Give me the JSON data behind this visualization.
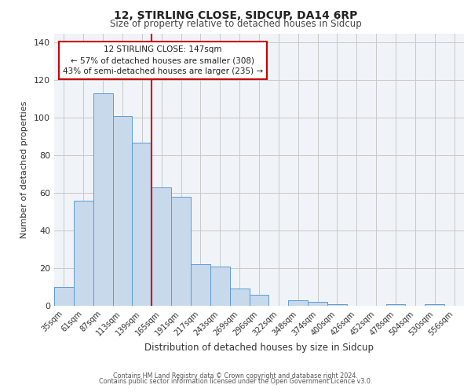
{
  "title1": "12, STIRLING CLOSE, SIDCUP, DA14 6RP",
  "title2": "Size of property relative to detached houses in Sidcup",
  "xlabel": "Distribution of detached houses by size in Sidcup",
  "ylabel": "Number of detached properties",
  "bar_labels": [
    "35sqm",
    "61sqm",
    "87sqm",
    "113sqm",
    "139sqm",
    "165sqm",
    "191sqm",
    "217sqm",
    "243sqm",
    "269sqm",
    "296sqm",
    "322sqm",
    "348sqm",
    "374sqm",
    "400sqm",
    "426sqm",
    "452sqm",
    "478sqm",
    "504sqm",
    "530sqm",
    "556sqm"
  ],
  "bar_values": [
    10,
    56,
    113,
    101,
    87,
    63,
    58,
    22,
    21,
    9,
    6,
    0,
    3,
    2,
    1,
    0,
    0,
    1,
    0,
    1,
    0
  ],
  "bar_color": "#c8d9ec",
  "bar_edge_color": "#5b9bd5",
  "ylim": [
    0,
    145
  ],
  "yticks": [
    0,
    20,
    40,
    60,
    80,
    100,
    120,
    140
  ],
  "vline_x": 4.5,
  "vline_color": "#cc0000",
  "annotation_title": "12 STIRLING CLOSE: 147sqm",
  "annotation_line1": "← 57% of detached houses are smaller (308)",
  "annotation_line2": "43% of semi-detached houses are larger (235) →",
  "footer1": "Contains HM Land Registry data © Crown copyright and database right 2024.",
  "footer2": "Contains public sector information licensed under the Open Government Licence v3.0.",
  "bg_color": "#f0f4f8",
  "grid_color": "#c8c8c8",
  "title1_fontsize": 10,
  "title2_fontsize": 8.5
}
